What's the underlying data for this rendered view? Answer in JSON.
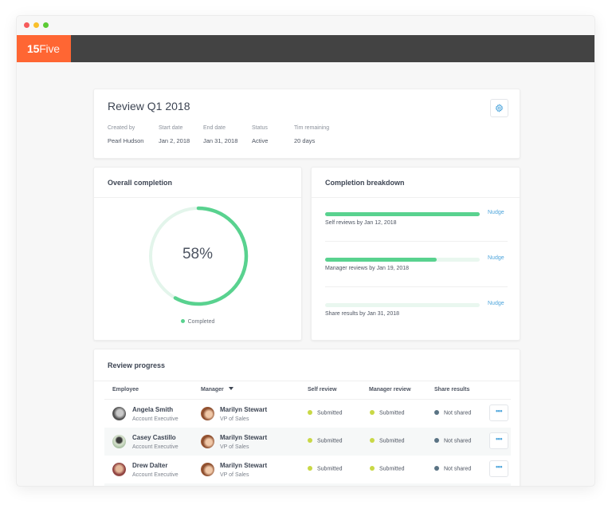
{
  "window": {
    "traffic_lights": [
      "close",
      "minimize",
      "maximize"
    ]
  },
  "navbar": {
    "logo_bold": "15",
    "logo_light": "Five",
    "logo_color": "#ff6633",
    "bar_color": "#434343"
  },
  "review": {
    "title": "Review Q1 2018",
    "settings_icon": "gear-icon",
    "meta": [
      {
        "label": "Created by",
        "value": "Pearl Hudson"
      },
      {
        "label": "Start date",
        "value": "Jan 2, 2018"
      },
      {
        "label": "End date",
        "value": "Jan 31, 2018"
      },
      {
        "label": "Status",
        "value": "Active"
      },
      {
        "label": "Tim remaining",
        "value": "20 days"
      }
    ]
  },
  "overall": {
    "title": "Overall completion",
    "percent": 58,
    "percent_label": "58%",
    "legend": "Completed",
    "color": "#59d28f",
    "track_color": "#e3f5eb"
  },
  "breakdown": {
    "title": "Completion breakdown",
    "items": [
      {
        "label": "Self reviews by Jan 12, 2018",
        "percent": 100,
        "action": "Nudge"
      },
      {
        "label": "Manager reviews by Jan 19, 2018",
        "percent": 72,
        "action": "Nudge"
      },
      {
        "label": "Share results by Jan 31, 2018",
        "percent": 0,
        "action": "Nudge"
      }
    ]
  },
  "progress": {
    "title": "Review progress",
    "columns": [
      "Employee",
      "Manager",
      "Self review",
      "Manager review",
      "Share results"
    ],
    "sorted_column": "Manager",
    "rows": [
      {
        "employee": "Angela Smith",
        "employee_role": "Account Executive",
        "manager": "Marilyn Stewart",
        "manager_role": "VP of Sales",
        "self_review": "Submitted",
        "manager_review": "Submitted",
        "share_results": "Not shared",
        "more": "•••"
      },
      {
        "employee": "Casey Castillo",
        "employee_role": "Account Executive",
        "manager": "Marilyn Stewart",
        "manager_role": "VP of Sales",
        "self_review": "Submitted",
        "manager_review": "Submitted",
        "share_results": "Not shared",
        "more": "•••"
      },
      {
        "employee": "Drew Dalter",
        "employee_role": "Account Executive",
        "manager": "Marilyn Stewart",
        "manager_role": "VP of Sales",
        "self_review": "Submitted",
        "manager_review": "Submitted",
        "share_results": "Not shared",
        "more": "•••"
      }
    ],
    "status_colors": {
      "Submitted": "#c9d846",
      "Not shared": "#5a7384"
    }
  }
}
